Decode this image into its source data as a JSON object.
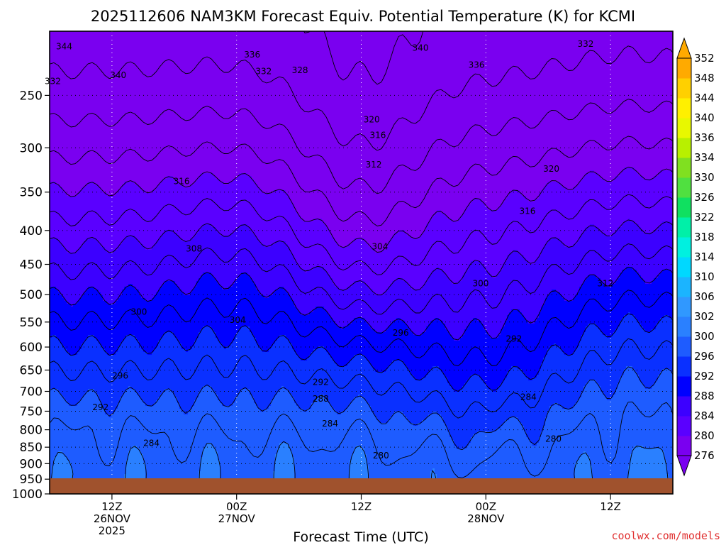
{
  "chart_data": {
    "type": "heatmap",
    "title": "2025112606 NAM3KM Forecast Equiv. Potential Temperature (K) for KCMI",
    "xlabel": "Forecast Time (UTC)",
    "ylabel": "",
    "x_ticks": [
      {
        "hours": 6,
        "lines": [
          "12Z",
          "26NOV",
          "2025"
        ]
      },
      {
        "hours": 18,
        "lines": [
          "00Z",
          "27NOV"
        ]
      },
      {
        "hours": 30,
        "lines": [
          "12Z"
        ]
      },
      {
        "hours": 42,
        "lines": [
          "00Z",
          "28NOV"
        ]
      },
      {
        "hours": 54,
        "lines": [
          "12Z"
        ]
      }
    ],
    "xlim_hours": [
      0,
      60
    ],
    "y_levels": [
      1000,
      950,
      900,
      850,
      800,
      750,
      700,
      650,
      600,
      550,
      500,
      450,
      400,
      350,
      300,
      250
    ],
    "ylim": [
      1000,
      200
    ],
    "y_scale": "log",
    "colorbar": {
      "levels": [
        276,
        280,
        284,
        288,
        292,
        296,
        300,
        302,
        306,
        310,
        314,
        318,
        322,
        326,
        330,
        334,
        336,
        340,
        344,
        348,
        352
      ],
      "colors": [
        "#7a00f0",
        "#5a00ff",
        "#3c00ff",
        "#0000ff",
        "#0a30ff",
        "#1e5cff",
        "#2a80ff",
        "#3098ff",
        "#1bb4ff",
        "#00d8ff",
        "#00f0e0",
        "#00f0a8",
        "#10e060",
        "#50e040",
        "#80e020",
        "#b8f000",
        "#e8f800",
        "#fff000",
        "#ffd000",
        "#ffaa00"
      ],
      "extend": "both"
    },
    "contour_labels": [
      {
        "text": "344",
        "t": 1.4,
        "p": 211
      },
      {
        "text": "340",
        "t": 6.6,
        "p": 233
      },
      {
        "text": "336",
        "t": 19.5,
        "p": 217
      },
      {
        "text": "332",
        "t": 20.6,
        "p": 230
      },
      {
        "text": "328",
        "t": 24.1,
        "p": 229
      },
      {
        "text": "340",
        "t": 35.7,
        "p": 212
      },
      {
        "text": "336",
        "t": 41.1,
        "p": 225
      },
      {
        "text": "332",
        "t": 51.6,
        "p": 209
      },
      {
        "text": "332",
        "t": 0.3,
        "p": 238
      },
      {
        "text": "320",
        "t": 31.0,
        "p": 272
      },
      {
        "text": "316",
        "t": 31.6,
        "p": 287
      },
      {
        "text": "312",
        "t": 31.2,
        "p": 318
      },
      {
        "text": "316",
        "t": 12.7,
        "p": 337
      },
      {
        "text": "320",
        "t": 48.3,
        "p": 323
      },
      {
        "text": "316",
        "t": 46.0,
        "p": 374
      },
      {
        "text": "308",
        "t": 13.9,
        "p": 426
      },
      {
        "text": "304",
        "t": 31.8,
        "p": 423
      },
      {
        "text": "300",
        "t": 41.5,
        "p": 481
      },
      {
        "text": "312",
        "t": 53.5,
        "p": 481
      },
      {
        "text": "300",
        "t": 8.6,
        "p": 531
      },
      {
        "text": "304",
        "t": 18.1,
        "p": 546
      },
      {
        "text": "296",
        "t": 33.8,
        "p": 571
      },
      {
        "text": "292",
        "t": 44.7,
        "p": 583
      },
      {
        "text": "296",
        "t": 6.8,
        "p": 663
      },
      {
        "text": "292",
        "t": 26.1,
        "p": 678
      },
      {
        "text": "288",
        "t": 26.1,
        "p": 718
      },
      {
        "text": "284",
        "t": 46.1,
        "p": 714
      },
      {
        "text": "292",
        "t": 4.9,
        "p": 740
      },
      {
        "text": "284",
        "t": 27.0,
        "p": 783
      },
      {
        "text": "280",
        "t": 48.5,
        "p": 826
      },
      {
        "text": "284",
        "t": 9.8,
        "p": 838
      },
      {
        "text": "280",
        "t": 31.9,
        "p": 875
      }
    ]
  },
  "credit": "coolwx.com/models"
}
